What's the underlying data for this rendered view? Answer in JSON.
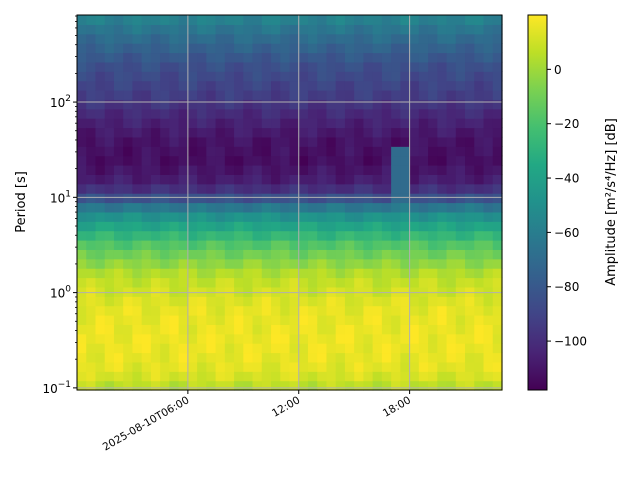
{
  "chart_data": {
    "type": "heatmap",
    "title": "",
    "xlabel": "",
    "ylabel": "Period [s]",
    "colorbar_label": "Amplitude [m²/s⁴/Hz] [dB]",
    "colormap": "viridis",
    "x_axis": {
      "type": "datetime",
      "range": [
        "2025-08-10T00:00",
        "2025-08-10T23:00"
      ],
      "ticks": [
        {
          "value": "2025-08-10T06:00",
          "label": "2025-08-10T06:00"
        },
        {
          "value": "2025-08-10T12:00",
          "label": "12:00"
        },
        {
          "value": "2025-08-10T18:00",
          "label": "18:00"
        }
      ]
    },
    "y_axis": {
      "scale": "log",
      "range": [
        0.095,
        820
      ],
      "ticks": [
        {
          "value": 0.1,
          "base": "10",
          "exp": "−1"
        },
        {
          "value": 1,
          "base": "10",
          "exp": "0"
        },
        {
          "value": 10,
          "base": "10",
          "exp": "1"
        },
        {
          "value": 100,
          "base": "10",
          "exp": "2"
        }
      ]
    },
    "colorbar": {
      "range": [
        -118,
        20
      ],
      "ticks": [
        {
          "value": 0,
          "label": "0"
        },
        {
          "value": -20,
          "label": "−20"
        },
        {
          "value": -40,
          "label": "−40"
        },
        {
          "value": -60,
          "label": "−60"
        },
        {
          "value": -80,
          "label": "−80"
        },
        {
          "value": -100,
          "label": "−100"
        }
      ]
    },
    "grid": true,
    "profile_by_period": [
      {
        "period": 0.095,
        "db": 4
      },
      {
        "period": 0.15,
        "db": 14
      },
      {
        "period": 0.3,
        "db": 17
      },
      {
        "period": 0.7,
        "db": 15
      },
      {
        "period": 1.5,
        "db": 6
      },
      {
        "period": 3,
        "db": -15
      },
      {
        "period": 6,
        "db": -45
      },
      {
        "period": 8.5,
        "db": -68
      },
      {
        "period": 11,
        "db": -95
      },
      {
        "period": 16,
        "db": -108
      },
      {
        "period": 25,
        "db": -113
      },
      {
        "period": 40,
        "db": -111
      },
      {
        "period": 70,
        "db": -103
      },
      {
        "period": 120,
        "db": -93
      },
      {
        "period": 250,
        "db": -84
      },
      {
        "period": 500,
        "db": -68
      },
      {
        "period": 820,
        "db": -55
      }
    ],
    "events": [
      {
        "start": "2025-08-10T17:00",
        "end": "2025-08-10T17:56",
        "period_range": [
          8,
          35
        ],
        "db": -70
      }
    ]
  }
}
